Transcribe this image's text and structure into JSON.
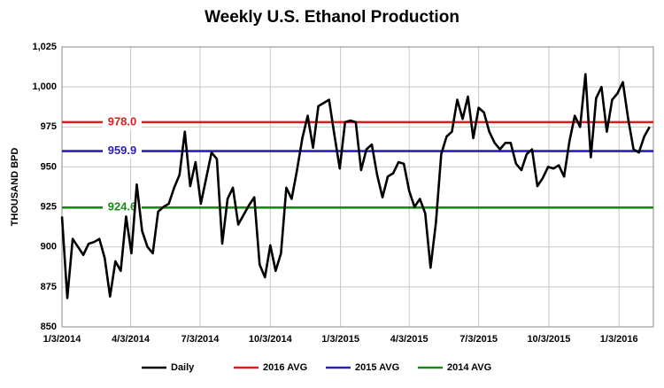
{
  "chart_data": {
    "type": "line",
    "title": "Weekly U.S. Ethanol Production",
    "y_label": "THOUSAND BPD",
    "x": [
      "1/3/2014",
      "1/10/2014",
      "1/17/2014",
      "1/24/2014",
      "1/31/2014",
      "2/7/2014",
      "2/14/2014",
      "2/21/2014",
      "2/28/2014",
      "3/7/2014",
      "3/14/2014",
      "3/21/2014",
      "3/28/2014",
      "4/4/2014",
      "4/11/2014",
      "4/18/2014",
      "4/25/2014",
      "5/2/2014",
      "5/9/2014",
      "5/16/2014",
      "5/23/2014",
      "5/30/2014",
      "6/6/2014",
      "6/13/2014",
      "6/20/2014",
      "6/27/2014",
      "7/4/2014",
      "7/11/2014",
      "7/18/2014",
      "7/25/2014",
      "8/1/2014",
      "8/8/2014",
      "8/15/2014",
      "8/22/2014",
      "8/29/2014",
      "9/5/2014",
      "9/12/2014",
      "9/19/2014",
      "9/26/2014",
      "10/3/2014",
      "10/10/2014",
      "10/17/2014",
      "10/24/2014",
      "10/31/2014",
      "11/7/2014",
      "11/14/2014",
      "11/21/2014",
      "11/28/2014",
      "12/5/2014",
      "12/12/2014",
      "12/19/2014",
      "12/26/2014",
      "1/2/2015",
      "1/9/2015",
      "1/16/2015",
      "1/23/2015",
      "1/30/2015",
      "2/6/2015",
      "2/13/2015",
      "2/20/2015",
      "2/27/2015",
      "3/6/2015",
      "3/13/2015",
      "3/20/2015",
      "3/27/2015",
      "4/3/2015",
      "4/10/2015",
      "4/17/2015",
      "4/24/2015",
      "5/1/2015",
      "5/8/2015",
      "5/15/2015",
      "5/22/2015",
      "5/29/2015",
      "6/5/2015",
      "6/12/2015",
      "6/19/2015",
      "6/26/2015",
      "7/3/2015",
      "7/10/2015",
      "7/17/2015",
      "7/24/2015",
      "7/31/2015",
      "8/7/2015",
      "8/14/2015",
      "8/21/2015",
      "8/28/2015",
      "9/4/2015",
      "9/11/2015",
      "9/18/2015",
      "9/25/2015",
      "10/2/2015",
      "10/9/2015",
      "10/16/2015",
      "10/23/2015",
      "10/30/2015",
      "11/6/2015",
      "11/13/2015",
      "11/20/2015",
      "11/27/2015",
      "12/4/2015",
      "12/11/2015",
      "12/18/2015",
      "12/25/2015",
      "1/1/2016",
      "1/8/2016",
      "1/15/2016",
      "1/22/2016",
      "1/29/2016",
      "2/5/2016",
      "2/12/2016"
    ],
    "xlim": [
      "1/3/2014",
      "2/17/2016"
    ],
    "xticks": [
      "1/3/2014",
      "4/3/2014",
      "7/3/2014",
      "10/3/2014",
      "1/3/2015",
      "4/3/2015",
      "7/3/2015",
      "10/3/2015",
      "1/3/2016"
    ],
    "ylim": [
      850,
      1025
    ],
    "yticks": [
      850,
      875,
      900,
      925,
      950,
      975,
      {
        "value": 1000,
        "label": "1,000"
      },
      {
        "value": 1025,
        "label": "1,025"
      }
    ],
    "grid": true,
    "legend": "bottom",
    "series": [
      {
        "name": "Daily",
        "color": "#000000",
        "values": [
          919,
          868,
          905,
          900,
          895,
          902,
          903,
          905,
          893,
          869,
          891,
          885,
          919,
          896,
          939,
          910,
          900,
          896,
          922,
          925,
          927,
          937,
          945,
          972,
          938,
          953,
          927,
          943,
          959,
          955,
          902,
          930,
          937,
          914,
          920,
          926,
          931,
          889,
          881,
          901,
          885,
          896,
          937,
          930,
          948,
          968,
          982,
          962,
          988,
          990,
          992,
          970,
          949,
          978,
          979,
          978,
          948,
          961,
          964,
          945,
          931,
          944,
          946,
          953,
          952,
          935,
          925,
          930,
          921,
          887,
          915,
          958,
          969,
          972,
          992,
          980,
          994,
          968,
          987,
          984,
          972,
          965,
          961,
          965,
          965,
          952,
          948,
          958,
          961,
          938,
          943,
          950,
          949,
          951,
          944,
          966,
          982,
          975,
          1008,
          956,
          993,
          1000,
          972,
          992,
          996,
          1003,
          980,
          961,
          959,
          969,
          975
        ]
      }
    ],
    "reference_lines": [
      {
        "name": "2016 AVG",
        "color": "#e31a1c",
        "value": 978,
        "value_label": "978.0"
      },
      {
        "name": "2015 AVG",
        "color": "#2c1fb8",
        "value": 959.9
      },
      {
        "name": "2014 AVG",
        "color": "#1a8a1a",
        "value": 924.6
      }
    ]
  }
}
